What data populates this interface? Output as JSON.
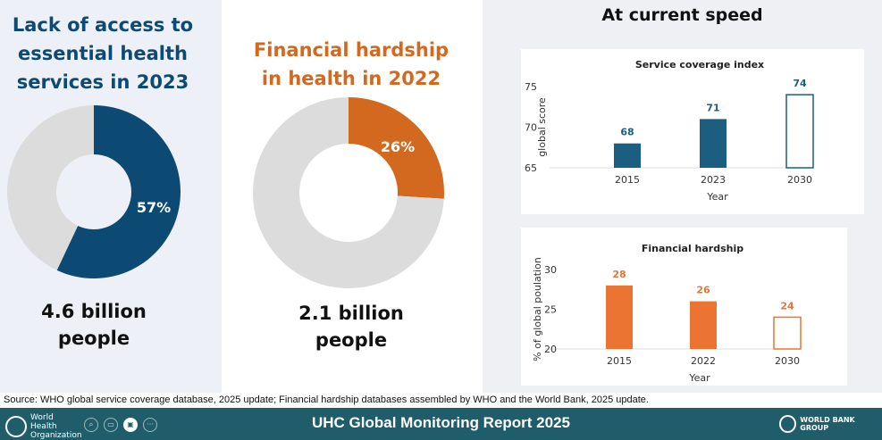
{
  "left": {
    "title": "Lack of access to essential health services in 2023",
    "title_lines": [
      "Lack of access to",
      "essential health",
      "services in 2023"
    ],
    "stat_lines": [
      "4.6 billion",
      "people"
    ]
  },
  "middle": {
    "title_lines": [
      "Financial hardship",
      "in health in 2022"
    ],
    "stat_lines": [
      "2.1 billion",
      "people"
    ]
  },
  "right": {
    "title": "At current speed"
  },
  "source": "Source: WHO global service coverage database, 2025 update; Financial hardship databases assembled by WHO and the World Bank, 2025 update.",
  "footer": {
    "title": "UHC Global Monitoring Report 2025",
    "who_logo": "World Health Organization",
    "wb_logo": "WORLD BANK GROUP",
    "toolbar_icons": [
      "search-icon",
      "subtitles-icon",
      "video-icon",
      "more-icon"
    ]
  },
  "colors": {
    "blue": "#0d4a73",
    "orange": "#d2691e",
    "bar_blue": "#1b5e80",
    "bar_orange": "#ec7432",
    "grey": "#dcdcdc",
    "footer": "#1f5d6b"
  },
  "chart_data": [
    {
      "type": "pie",
      "donut": true,
      "label": "57%",
      "values": [
        57,
        43
      ],
      "colors": [
        "#0d4a73",
        "#dcdcdc"
      ]
    },
    {
      "type": "pie",
      "donut": true,
      "label": "26%",
      "values": [
        26,
        74
      ],
      "colors": [
        "#d2691e",
        "#dcdcdc"
      ]
    },
    {
      "type": "bar",
      "title": "Service coverage index",
      "xlabel": "Year",
      "ylabel": "global score",
      "categories": [
        "2015",
        "2023",
        "2030"
      ],
      "values": [
        68,
        71,
        74
      ],
      "projected": [
        false,
        false,
        true
      ],
      "ylim": [
        65,
        75
      ],
      "yticks": [
        65,
        70,
        75
      ],
      "color": "#1b5e80"
    },
    {
      "type": "bar",
      "title": "Financial hardship",
      "xlabel": "Year",
      "ylabel": "% of global poulation",
      "categories": [
        "2015",
        "2022",
        "2030"
      ],
      "values": [
        28,
        26,
        24
      ],
      "projected": [
        false,
        false,
        true
      ],
      "ylim": [
        20,
        30
      ],
      "yticks": [
        20,
        25,
        30
      ],
      "color": "#ec7432"
    }
  ]
}
